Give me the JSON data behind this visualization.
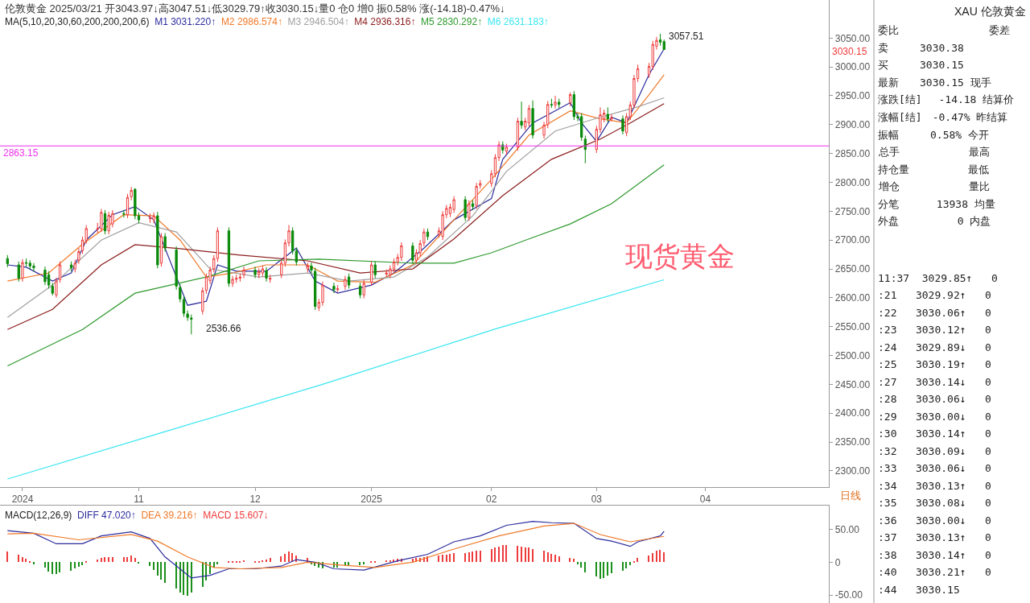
{
  "chart_data": [
    {
      "type": "candlestick",
      "title": "伦敦黄金 2025/03/21 开3043.97↓高3047.51↓低3029.79↑收3030.15↓量0 仓0 增0 振0.58% 涨(-14.18)-0.47%↓",
      "legend_title": "MA(5,10,20,30,60,200,200,200,6)",
      "legend": "top left",
      "x": [
        "2024-09-27",
        "2024-09-30",
        "2024-10-01",
        "2024-10-02",
        "2024-10-03",
        "2024-10-04",
        "2024-10-07",
        "2024-10-08",
        "2024-10-09",
        "2024-10-10",
        "2024-10-11",
        "2024-10-14",
        "2024-10-15",
        "2024-10-16",
        "2024-10-17",
        "2024-10-18",
        "2024-10-21",
        "2024-10-22",
        "2024-10-23",
        "2024-10-24",
        "2024-10-25",
        "2024-10-28",
        "2024-10-29",
        "2024-10-30",
        "2024-10-31",
        "2024-11-01",
        "2024-11-04",
        "2024-11-05",
        "2024-11-06",
        "2024-11-07",
        "2024-11-08",
        "2024-11-11",
        "2024-11-12",
        "2024-11-13",
        "2024-11-14",
        "2024-11-15",
        "2024-11-18",
        "2024-11-19",
        "2024-11-20",
        "2024-11-21",
        "2024-11-22",
        "2024-11-25",
        "2024-11-26",
        "2024-11-27",
        "2024-11-28",
        "2024-11-29",
        "2024-12-02",
        "2024-12-03",
        "2024-12-04",
        "2024-12-05",
        "2024-12-06",
        "2024-12-09",
        "2024-12-10",
        "2024-12-11",
        "2024-12-12",
        "2024-12-13",
        "2024-12-16",
        "2024-12-17",
        "2024-12-18",
        "2024-12-19",
        "2024-12-20",
        "2024-12-23",
        "2024-12-24",
        "2024-12-26",
        "2024-12-27",
        "2024-12-30",
        "2024-12-31",
        "2025-01-02",
        "2025-01-03",
        "2025-01-06",
        "2025-01-07",
        "2025-01-08",
        "2025-01-09",
        "2025-01-10",
        "2025-01-13",
        "2025-01-14",
        "2025-01-15",
        "2025-01-16",
        "2025-01-17",
        "2025-01-20",
        "2025-01-21",
        "2025-01-22",
        "2025-01-23",
        "2025-01-24",
        "2025-01-27",
        "2025-01-28",
        "2025-01-29",
        "2025-01-30",
        "2025-01-31",
        "2025-02-03",
        "2025-02-04",
        "2025-02-05",
        "2025-02-06",
        "2025-02-07",
        "2025-02-10",
        "2025-02-11",
        "2025-02-12",
        "2025-02-13",
        "2025-02-14",
        "2025-02-17",
        "2025-02-18",
        "2025-02-19",
        "2025-02-20",
        "2025-02-21",
        "2025-02-24",
        "2025-02-25",
        "2025-02-26",
        "2025-02-27",
        "2025-02-28",
        "2025-03-03",
        "2025-03-04",
        "2025-03-05",
        "2025-03-06",
        "2025-03-07",
        "2025-03-10",
        "2025-03-11",
        "2025-03-12",
        "2025-03-13",
        "2025-03-14",
        "2025-03-17",
        "2025-03-18",
        "2025-03-19",
        "2025-03-20",
        "2025-03-21"
      ],
      "ohlc": [
        [
          2668,
          2674,
          2653,
          2659
        ],
        [
          2657,
          2663,
          2628,
          2634
        ],
        [
          2634,
          2667,
          2628,
          2661
        ],
        [
          2661,
          2668,
          2654,
          2660
        ],
        [
          2660,
          2665,
          2649,
          2655
        ],
        [
          2655,
          2660,
          2646,
          2652
        ],
        [
          2648,
          2654,
          2622,
          2628
        ],
        [
          2640,
          2646,
          2616,
          2622
        ],
        [
          2620,
          2626,
          2604,
          2608
        ],
        [
          2605,
          2635,
          2600,
          2629
        ],
        [
          2632,
          2663,
          2626,
          2657
        ],
        [
          2657,
          2663,
          2646,
          2652
        ],
        [
          2650,
          2666,
          2644,
          2660
        ],
        [
          2665,
          2686,
          2659,
          2680
        ],
        [
          2682,
          2706,
          2676,
          2700
        ],
        [
          2700,
          2726,
          2694,
          2720
        ],
        [
          2719,
          2730,
          2712,
          2720
        ],
        [
          2720,
          2754,
          2714,
          2748
        ],
        [
          2746,
          2752,
          2710,
          2716
        ],
        [
          2716,
          2749,
          2710,
          2743
        ],
        [
          2728,
          2752,
          2722,
          2746
        ],
        [
          2746,
          2752,
          2739,
          2745
        ],
        [
          2744,
          2780,
          2738,
          2774
        ],
        [
          2775,
          2792,
          2769,
          2786
        ],
        [
          2788,
          2790,
          2736,
          2742
        ],
        [
          2742,
          2748,
          2729,
          2735
        ],
        [
          2737,
          2746,
          2730,
          2738
        ],
        [
          2735,
          2748,
          2729,
          2742
        ],
        [
          2742,
          2749,
          2651,
          2657
        ],
        [
          2660,
          2712,
          2654,
          2706
        ],
        [
          2706,
          2712,
          2680,
          2686
        ],
        [
          2683,
          2689,
          2614,
          2620
        ],
        [
          2618,
          2624,
          2592,
          2598
        ],
        [
          2597,
          2603,
          2567,
          2573
        ],
        [
          2572,
          2578,
          2560,
          2566
        ],
        [
          2565,
          2571,
          2536.66,
          2563
        ],
        [
          2577,
          2618,
          2571,
          2612
        ],
        [
          2613,
          2642,
          2607,
          2636
        ],
        [
          2630,
          2654,
          2624,
          2648
        ],
        [
          2650,
          2674,
          2644,
          2668
        ],
        [
          2668,
          2722,
          2662,
          2716
        ],
        [
          2716,
          2722,
          2619,
          2625
        ],
        [
          2625,
          2638,
          2619,
          2632
        ],
        [
          2632,
          2640,
          2626,
          2634
        ],
        [
          2634,
          2642,
          2628,
          2636
        ],
        [
          2640,
          2654,
          2634,
          2648
        ],
        [
          2648,
          2654,
          2634,
          2640
        ],
        [
          2640,
          2651,
          2634,
          2645
        ],
        [
          2643,
          2656,
          2637,
          2650
        ],
        [
          2647,
          2653,
          2628,
          2634
        ],
        [
          2632,
          2640,
          2626,
          2634
        ],
        [
          2640,
          2666,
          2634,
          2660
        ],
        [
          2660,
          2701,
          2654,
          2695
        ],
        [
          2695,
          2726,
          2689,
          2716
        ],
        [
          2716,
          2722,
          2675,
          2681
        ],
        [
          2681,
          2687,
          2656,
          2662
        ],
        [
          2650,
          2661,
          2644,
          2655
        ],
        [
          2655,
          2661,
          2642,
          2648
        ],
        [
          2646,
          2652,
          2579,
          2585
        ],
        [
          2583,
          2598,
          2577,
          2592
        ],
        [
          2592,
          2628,
          2586,
          2622
        ],
        [
          2620,
          2626,
          2608,
          2614
        ],
        [
          2614,
          2622,
          2610,
          2616
        ],
        [
          2620,
          2638,
          2614,
          2632
        ],
        [
          2636,
          2642,
          2616,
          2622
        ],
        [
          2620,
          2626,
          2599,
          2605
        ],
        [
          2605,
          2631,
          2599,
          2625
        ],
        [
          2627,
          2663,
          2621,
          2657
        ],
        [
          2657,
          2663,
          2634,
          2640
        ],
        [
          2641,
          2649,
          2637,
          2643
        ],
        [
          2640,
          2656,
          2634,
          2650
        ],
        [
          2650,
          2668,
          2644,
          2662
        ],
        [
          2662,
          2676,
          2656,
          2670
        ],
        [
          2670,
          2696,
          2664,
          2690
        ],
        [
          2690,
          2696,
          2659,
          2665
        ],
        [
          2665,
          2684,
          2659,
          2678
        ],
        [
          2678,
          2700,
          2672,
          2694
        ],
        [
          2695,
          2720,
          2689,
          2714
        ],
        [
          2714,
          2720,
          2700,
          2706
        ],
        [
          2710,
          2722,
          2704,
          2716
        ],
        [
          2706,
          2750,
          2700,
          2744
        ],
        [
          2744,
          2761,
          2738,
          2755
        ],
        [
          2746,
          2763,
          2740,
          2757
        ],
        [
          2753,
          2776,
          2747,
          2770
        ],
        [
          2770,
          2776,
          2733,
          2739
        ],
        [
          2739,
          2769,
          2733,
          2763
        ],
        [
          2763,
          2769,
          2752,
          2758
        ],
        [
          2760,
          2799,
          2754,
          2793
        ],
        [
          2795,
          2804,
          2789,
          2798
        ],
        [
          2798,
          2821,
          2792,
          2815
        ],
        [
          2815,
          2849,
          2809,
          2843
        ],
        [
          2843,
          2871,
          2837,
          2865
        ],
        [
          2865,
          2871,
          2850,
          2856
        ],
        [
          2854,
          2867,
          2848,
          2861
        ],
        [
          2861,
          2912,
          2855,
          2906
        ],
        [
          2906,
          2940,
          2893,
          2899
        ],
        [
          2896,
          2912,
          2890,
          2906
        ],
        [
          2903,
          2934,
          2897,
          2928
        ],
        [
          2928,
          2942,
          2876,
          2882
        ],
        [
          2882,
          2905,
          2876,
          2899
        ],
        [
          2900,
          2941,
          2894,
          2935
        ],
        [
          2935,
          2945,
          2929,
          2934
        ],
        [
          2934,
          2950,
          2928,
          2939
        ],
        [
          2939,
          2945,
          2929,
          2935
        ],
        [
          2938,
          2956,
          2932,
          2952
        ],
        [
          2952,
          2958,
          2908,
          2914
        ],
        [
          2914,
          2920,
          2906,
          2912
        ],
        [
          2914,
          2920,
          2872,
          2878
        ],
        [
          2875,
          2881,
          2833,
          2857
        ],
        [
          2857,
          2898,
          2851,
          2892
        ],
        [
          2892,
          2930,
          2886,
          2917
        ],
        [
          2910,
          2926,
          2904,
          2920
        ],
        [
          2918,
          2930,
          2904,
          2910
        ],
        [
          2910,
          2918,
          2906,
          2912
        ],
        [
          2910,
          2916,
          2883,
          2889
        ],
        [
          2886,
          2920,
          2880,
          2914
        ],
        [
          2914,
          2940,
          2908,
          2934
        ],
        [
          2934,
          2986,
          2928,
          2980
        ],
        [
          2980,
          3004,
          2974,
          2997
        ],
        [
          2987,
          3007,
          2981,
          3001
        ],
        [
          3001,
          3045,
          2995,
          3039
        ],
        [
          3036,
          3052,
          3030,
          3046
        ],
        [
          3047,
          3057.51,
          3037,
          3043
        ],
        [
          3043.97,
          3047.51,
          3029.79,
          3030.15
        ]
      ],
      "series": [
        {
          "type": "line",
          "name": "M1 3031.220↑",
          "color": "#2b2b9e",
          "x": [
            "2024-09-27",
            "2024-10-02",
            "2024-10-09",
            "2024-10-14",
            "2024-10-18",
            "2024-10-25",
            "2024-10-31",
            "2024-11-05",
            "2024-11-14",
            "2024-11-19",
            "2024-11-22",
            "2024-11-27",
            "2024-12-05",
            "2024-12-13",
            "2024-12-18",
            "2024-12-24",
            "2025-01-02",
            "2025-01-08",
            "2025-01-16",
            "2025-01-24",
            "2025-02-03",
            "2025-02-06",
            "2025-02-14",
            "2025-02-24",
            "2025-02-27",
            "2025-03-03",
            "2025-03-07",
            "2025-03-11",
            "2025-03-17",
            "2025-03-21"
          ],
          "values": [
            2657,
            2653,
            2629,
            2643,
            2700,
            2744,
            2758,
            2735,
            2587,
            2594,
            2657,
            2646,
            2646,
            2686,
            2629,
            2608,
            2622,
            2643,
            2686,
            2735,
            2772,
            2840,
            2903,
            2938,
            2903,
            2871,
            2913,
            2903,
            2987,
            3031.22
          ]
        },
        {
          "type": "line",
          "name": "M2 2986.574↑",
          "color": "#f07a2a",
          "x": [
            "2024-09-27",
            "2024-10-08",
            "2024-10-17",
            "2024-10-28",
            "2024-11-05",
            "2024-11-12",
            "2024-11-19",
            "2024-11-26",
            "2024-12-05",
            "2024-12-16",
            "2024-12-24",
            "2025-01-03",
            "2025-01-13",
            "2025-01-23",
            "2025-02-03",
            "2025-02-13",
            "2025-02-24",
            "2025-03-04",
            "2025-03-11",
            "2025-03-17",
            "2025-03-21"
          ],
          "values": [
            2629,
            2643,
            2693,
            2744,
            2742,
            2700,
            2636,
            2643,
            2657,
            2657,
            2629,
            2627,
            2657,
            2728,
            2805,
            2882,
            2924,
            2910,
            2903,
            2952,
            2986.574
          ]
        },
        {
          "type": "line",
          "name": "M3 2946.504↑",
          "color": "#a0a0a0",
          "x": [
            "2024-09-27",
            "2024-10-09",
            "2024-10-22",
            "2024-11-01",
            "2024-11-11",
            "2024-11-20",
            "2024-12-03",
            "2024-12-16",
            "2024-12-27",
            "2025-01-08",
            "2025-01-17",
            "2025-01-29",
            "2025-02-07",
            "2025-02-20",
            "2025-03-04",
            "2025-03-14",
            "2025-03-21"
          ],
          "values": [
            2566,
            2622,
            2700,
            2730,
            2714,
            2650,
            2636,
            2643,
            2629,
            2636,
            2671,
            2742,
            2819,
            2889,
            2913,
            2931,
            2946.504
          ]
        },
        {
          "type": "line",
          "name": "M4 2936.316↑",
          "color": "#8b1c1c",
          "x": [
            "2024-09-27",
            "2024-10-09",
            "2024-10-22",
            "2024-10-31",
            "2024-11-12",
            "2024-11-28",
            "2024-12-16",
            "2024-12-30",
            "2025-01-13",
            "2025-01-24",
            "2025-02-06",
            "2025-02-19",
            "2025-03-04",
            "2025-03-12",
            "2025-03-21"
          ],
          "values": [
            2545,
            2580,
            2657,
            2692,
            2685,
            2674,
            2664,
            2643,
            2650,
            2702,
            2777,
            2840,
            2875,
            2903,
            2936.316
          ]
        },
        {
          "type": "line",
          "name": "M5 2830.292↑",
          "color": "#2e9a2e",
          "x": [
            "2024-09-27",
            "2024-10-17",
            "2024-10-31",
            "2024-11-19",
            "2024-12-03",
            "2024-12-19",
            "2025-01-13",
            "2025-01-24",
            "2025-02-03",
            "2025-02-13",
            "2025-02-24",
            "2025-03-07",
            "2025-03-21"
          ],
          "values": [
            2482,
            2545,
            2608,
            2636,
            2664,
            2667,
            2660,
            2660,
            2678,
            2702,
            2728,
            2763,
            2830.292
          ]
        },
        {
          "type": "line",
          "name": "M6 2631.183↑",
          "color": "#3ae6f2",
          "x": [
            "2024-09-27",
            "2024-11-08",
            "2024-12-20",
            "2025-02-04",
            "2025-03-21"
          ],
          "values": [
            2286,
            2368,
            2450,
            2546,
            2631.183
          ]
        }
      ],
      "xlim": [
        "2024-09-25",
        "2025-05-04"
      ],
      "xticks": [
        {
          "value": "2024-10-01",
          "label": "2024"
        },
        {
          "value": "2024-11-01",
          "label": "11"
        },
        {
          "value": "2024-12-02",
          "label": "12"
        },
        {
          "value": "2025-01-02",
          "label": "2025"
        },
        {
          "value": "2025-02-03",
          "label": "02"
        },
        {
          "value": "2025-03-03",
          "label": "03"
        },
        {
          "value": "2025-04-01",
          "label": "04"
        }
      ],
      "ylim": [
        2272,
        3116
      ],
      "yticks": [
        {
          "value": 2300,
          "label": "2300.00"
        },
        {
          "value": 2350,
          "label": "2350.00"
        },
        {
          "value": 2400,
          "label": "2400.00"
        },
        {
          "value": 2450,
          "label": "2450.00"
        },
        {
          "value": 2500,
          "label": "2500.00"
        },
        {
          "value": 2550,
          "label": "2550.00"
        },
        {
          "value": 2600,
          "label": "2600.00"
        },
        {
          "value": 2650,
          "label": "2650.00"
        },
        {
          "value": 2700,
          "label": "2700.00"
        },
        {
          "value": 2750,
          "label": "2750.00"
        },
        {
          "value": 2800,
          "label": "2800.00"
        },
        {
          "value": 2850,
          "label": "2850.00"
        },
        {
          "value": 2900,
          "label": "2900.00"
        },
        {
          "value": 2950,
          "label": "2950.00"
        },
        {
          "value": 3000,
          "label": "3000.00"
        },
        {
          "value": 3050,
          "label": "3050.00"
        }
      ],
      "ref_lines": [
        {
          "axis": "y",
          "value": 2863.15,
          "label": "2863.15",
          "color": "#ee33ee"
        }
      ],
      "annotations": [
        "3057.51",
        "2536.66",
        "3030.15",
        "现货黄金",
        "日线"
      ]
    },
    {
      "type": "line",
      "legend_title": "MACD(12,26,9)",
      "legend": "top left",
      "tick_labels": "y",
      "xlim": [
        "2024-09-25",
        "2025-05-04"
      ],
      "ylim": [
        -62,
        86
      ],
      "yticks": [
        {
          "value": 50,
          "label": "50.00"
        },
        0,
        {
          "value": -50,
          "label": "-50.00"
        }
      ],
      "series": [
        {
          "type": "line",
          "name": "DIFF 47.020↑",
          "color": "#2b2b9e",
          "x": [
            "2024-09-27",
            "2024-10-04",
            "2024-10-10",
            "2024-10-17",
            "2024-10-22",
            "2024-10-30",
            "2024-11-04",
            "2024-11-08",
            "2024-11-15",
            "2024-11-20",
            "2024-11-25",
            "2024-12-02",
            "2024-12-09",
            "2024-12-13",
            "2024-12-18",
            "2024-12-23",
            "2024-12-31",
            "2025-01-09",
            "2025-01-17",
            "2025-01-24",
            "2025-01-31",
            "2025-02-07",
            "2025-02-14",
            "2025-02-19",
            "2025-02-25",
            "2025-03-03",
            "2025-03-07",
            "2025-03-12",
            "2025-03-14",
            "2025-03-20",
            "2025-03-21"
          ],
          "values": [
            48,
            44,
            28,
            28,
            40,
            46,
            36,
            8,
            -24,
            -20,
            -10,
            -10,
            -6,
            4,
            0,
            -10,
            -12,
            2,
            12,
            31,
            40,
            56,
            62,
            60,
            59,
            36,
            32,
            24,
            31,
            40,
            47.02
          ]
        },
        {
          "type": "line",
          "name": "DEA 39.216↑",
          "color": "#f07a2a",
          "x": [
            "2024-09-27",
            "2024-10-04",
            "2024-10-16",
            "2024-10-30",
            "2024-11-06",
            "2024-11-14",
            "2024-11-21",
            "2024-11-28",
            "2024-12-09",
            "2024-12-16",
            "2024-12-24",
            "2025-01-03",
            "2025-01-13",
            "2025-01-24",
            "2025-02-05",
            "2025-02-17",
            "2025-02-25",
            "2025-03-04",
            "2025-03-12",
            "2025-03-21"
          ],
          "values": [
            43,
            44,
            34,
            42,
            32,
            8,
            -8,
            -10,
            -8,
            0,
            -4,
            -8,
            0,
            20,
            40,
            55,
            59,
            42,
            31,
            39.216
          ]
        },
        {
          "type": "bar",
          "name": "MACD 15.607↓",
          "x": [
            "2024-09-27",
            "2024-09-30",
            "2024-10-01",
            "2024-10-02",
            "2024-10-03",
            "2024-10-04",
            "2024-10-07",
            "2024-10-08",
            "2024-10-09",
            "2024-10-10",
            "2024-10-11",
            "2024-10-14",
            "2024-10-15",
            "2024-10-16",
            "2024-10-17",
            "2024-10-18",
            "2024-10-21",
            "2024-10-22",
            "2024-10-23",
            "2024-10-24",
            "2024-10-25",
            "2024-10-28",
            "2024-10-29",
            "2024-10-30",
            "2024-10-31",
            "2024-11-01",
            "2024-11-04",
            "2024-11-05",
            "2024-11-06",
            "2024-11-07",
            "2024-11-08",
            "2024-11-11",
            "2024-11-12",
            "2024-11-13",
            "2024-11-14",
            "2024-11-15",
            "2024-11-18",
            "2024-11-19",
            "2024-11-20",
            "2024-11-21",
            "2024-11-22",
            "2024-11-25",
            "2024-11-26",
            "2024-11-27",
            "2024-11-28",
            "2024-11-29",
            "2024-12-02",
            "2024-12-03",
            "2024-12-04",
            "2024-12-05",
            "2024-12-06",
            "2024-12-09",
            "2024-12-10",
            "2024-12-11",
            "2024-12-12",
            "2024-12-13",
            "2024-12-16",
            "2024-12-17",
            "2024-12-18",
            "2024-12-19",
            "2024-12-20",
            "2024-12-23",
            "2024-12-24",
            "2024-12-26",
            "2024-12-27",
            "2024-12-30",
            "2024-12-31",
            "2025-01-02",
            "2025-01-03",
            "2025-01-06",
            "2025-01-07",
            "2025-01-08",
            "2025-01-09",
            "2025-01-10",
            "2025-01-13",
            "2025-01-14",
            "2025-01-15",
            "2025-01-16",
            "2025-01-17",
            "2025-01-20",
            "2025-01-21",
            "2025-01-22",
            "2025-01-23",
            "2025-01-24",
            "2025-01-27",
            "2025-01-28",
            "2025-01-29",
            "2025-01-30",
            "2025-01-31",
            "2025-02-03",
            "2025-02-04",
            "2025-02-05",
            "2025-02-06",
            "2025-02-07",
            "2025-02-10",
            "2025-02-11",
            "2025-02-12",
            "2025-02-13",
            "2025-02-14",
            "2025-02-17",
            "2025-02-18",
            "2025-02-19",
            "2025-02-20",
            "2025-02-21",
            "2025-02-24",
            "2025-02-25",
            "2025-02-26",
            "2025-02-27",
            "2025-02-28",
            "2025-03-03",
            "2025-03-04",
            "2025-03-05",
            "2025-03-06",
            "2025-03-07",
            "2025-03-10",
            "2025-03-11",
            "2025-03-12",
            "2025-03-13",
            "2025-03-14",
            "2025-03-17",
            "2025-03-18",
            "2025-03-19",
            "2025-03-20",
            "2025-03-21"
          ],
          "values": [
            16,
            12,
            8,
            5,
            2,
            -3,
            -8,
            -14,
            -18,
            -18,
            -16,
            -13,
            -10,
            -7,
            -4,
            2,
            4,
            6,
            8,
            8,
            8,
            8,
            8,
            10,
            6,
            -2,
            -6,
            -12,
            -20,
            -26,
            -32,
            -40,
            -46,
            -50,
            -51,
            -46,
            -38,
            -28,
            -18,
            -8,
            -3,
            2,
            1,
            2,
            2,
            3,
            2,
            2,
            3,
            4,
            6,
            9,
            13,
            16,
            14,
            10,
            6,
            -3,
            -6,
            -8,
            -9,
            -8,
            -8,
            -6,
            -5,
            -4,
            -3,
            2,
            2,
            3,
            3,
            4,
            5,
            5,
            5,
            6,
            7,
            8,
            9,
            10,
            11,
            12,
            13,
            14,
            14,
            15,
            16,
            17,
            18,
            20,
            22,
            24,
            26,
            26,
            25,
            24,
            23,
            22,
            20,
            17,
            15,
            13,
            11,
            9,
            7,
            5,
            -3,
            -8,
            -15,
            -22,
            -25,
            -24,
            -21,
            -17,
            -13,
            -9,
            -5,
            2,
            6,
            10,
            14,
            18,
            19,
            15.607
          ],
          "colors": [
            "#ee3b3b",
            "#ee3b3b",
            "#ee3b3b",
            "#ee3b3b",
            "#ee3b3b",
            "#1a8f1a",
            "#1a8f1a",
            "#1a8f1a",
            "#1a8f1a",
            "#1a8f1a",
            "#1a8f1a",
            "#1a8f1a",
            "#1a8f1a",
            "#1a8f1a",
            "#1a8f1a",
            "#ee3b3b",
            "#ee3b3b",
            "#ee3b3b",
            "#ee3b3b",
            "#ee3b3b",
            "#ee3b3b",
            "#ee3b3b",
            "#ee3b3b",
            "#ee3b3b",
            "#ee3b3b",
            "#1a8f1a",
            "#1a8f1a",
            "#1a8f1a",
            "#1a8f1a",
            "#1a8f1a",
            "#1a8f1a",
            "#1a8f1a",
            "#1a8f1a",
            "#1a8f1a",
            "#1a8f1a",
            "#1a8f1a",
            "#1a8f1a",
            "#1a8f1a",
            "#1a8f1a",
            "#1a8f1a",
            "#1a8f1a",
            "#ee3b3b",
            "#ee3b3b",
            "#ee3b3b",
            "#ee3b3b",
            "#ee3b3b",
            "#ee3b3b",
            "#ee3b3b",
            "#ee3b3b",
            "#ee3b3b",
            "#ee3b3b",
            "#ee3b3b",
            "#ee3b3b",
            "#ee3b3b",
            "#ee3b3b",
            "#ee3b3b",
            "#ee3b3b",
            "#1a8f1a",
            "#1a8f1a",
            "#1a8f1a",
            "#1a8f1a",
            "#1a8f1a",
            "#1a8f1a",
            "#1a8f1a",
            "#1a8f1a",
            "#1a8f1a",
            "#1a8f1a",
            "#ee3b3b",
            "#ee3b3b",
            "#ee3b3b",
            "#ee3b3b",
            "#ee3b3b",
            "#ee3b3b",
            "#ee3b3b",
            "#ee3b3b",
            "#ee3b3b",
            "#ee3b3b",
            "#ee3b3b",
            "#ee3b3b",
            "#ee3b3b",
            "#ee3b3b",
            "#ee3b3b",
            "#ee3b3b",
            "#ee3b3b",
            "#ee3b3b",
            "#ee3b3b",
            "#ee3b3b",
            "#ee3b3b",
            "#ee3b3b",
            "#ee3b3b",
            "#ee3b3b",
            "#ee3b3b",
            "#ee3b3b",
            "#ee3b3b",
            "#ee3b3b",
            "#ee3b3b",
            "#ee3b3b",
            "#ee3b3b",
            "#ee3b3b",
            "#ee3b3b",
            "#ee3b3b",
            "#ee3b3b",
            "#ee3b3b",
            "#ee3b3b",
            "#ee3b3b",
            "#ee3b3b",
            "#1a8f1a",
            "#1a8f1a",
            "#1a8f1a",
            "#1a8f1a",
            "#1a8f1a",
            "#1a8f1a",
            "#1a8f1a",
            "#1a8f1a",
            "#1a8f1a",
            "#1a8f1a",
            "#1a8f1a",
            "#ee3b3b",
            "#ee3b3b",
            "#ee3b3b",
            "#ee3b3b",
            "#ee3b3b",
            "#ee3b3b",
            "#ee3b3b"
          ]
        }
      ]
    },
    {
      "type": "other",
      "title": "XAU 伦敦黄金",
      "annotations": [
        "委比　　　　　　　　 委差",
        "卖　　　3030.38",
        "买　　　3030.15",
        "最新　　3030.15 现手",
        "涨跌[结]　 -14.18 结算价",
        "涨幅[结]　-0.47% 昨结算",
        "振幅　　　0.58% 今开",
        "总手　　　　　　 最高",
        "持仓量　　　　　 最低",
        "增仓　　　　　　 量比",
        "分笔　　　 13938 均量",
        "外盘　　　　　 0 内盘",
        "11:37  3029.85↑   0",
        ":21   3029.92↑   0",
        ":22   3030.06↑   0",
        ":23   3030.12↑   0",
        ":24   3029.89↓   0",
        ":25   3030.19↑   0",
        ":27   3030.14↓   0",
        ":28   3030.06↓   0",
        ":29   3030.00↓   0",
        ":30   3030.14↑   0",
        ":32   3030.09↓   0",
        ":33   3030.06↓   0",
        ":34   3030.13↑   0",
        ":35   3030.08↓   0",
        ":36   3030.00↓   0",
        ":37   3030.13↑   0",
        ":38   3030.14↑   0",
        ":40   3030.21↑   0",
        ":44   3030.15"
      ]
    }
  ]
}
